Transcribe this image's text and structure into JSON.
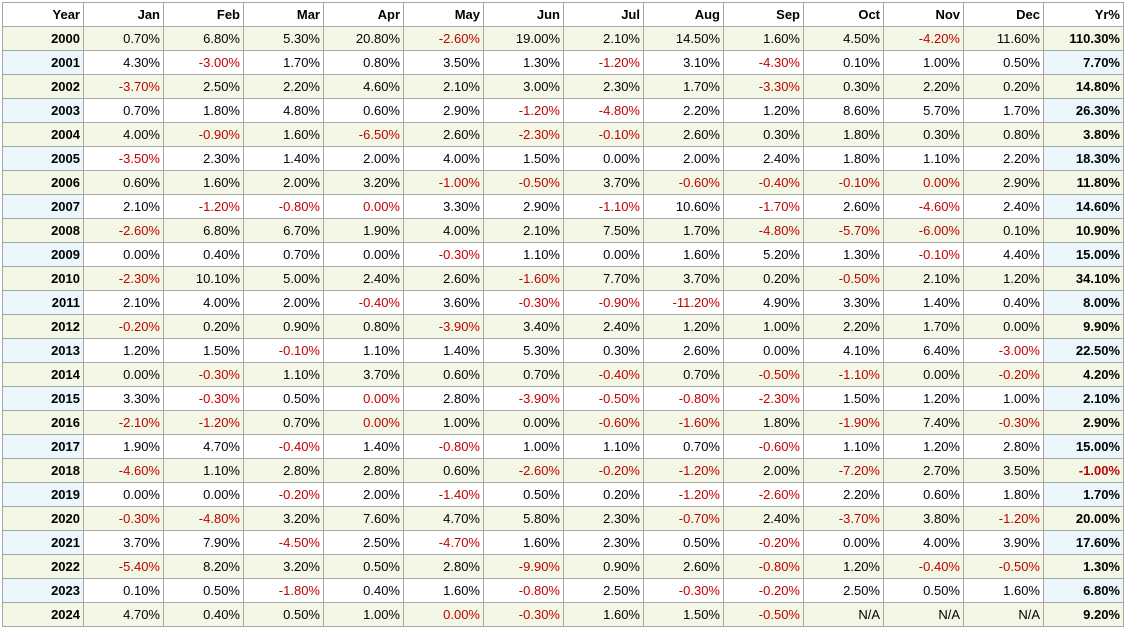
{
  "header": [
    "Year",
    "Jan",
    "Feb",
    "Mar",
    "Apr",
    "May",
    "Jun",
    "Jul",
    "Aug",
    "Sep",
    "Oct",
    "Nov",
    "Dec",
    "Yr%"
  ],
  "rows": [
    [
      "2000",
      "0.70%",
      "6.80%",
      "5.30%",
      "20.80%",
      "-2.60%",
      "19.00%",
      "2.10%",
      "14.50%",
      "1.60%",
      "4.50%",
      "-4.20%",
      "11.60%",
      "110.30%"
    ],
    [
      "2001",
      "4.30%",
      "-3.00%",
      "1.70%",
      "0.80%",
      "3.50%",
      "1.30%",
      "-1.20%",
      "3.10%",
      "-4.30%",
      "0.10%",
      "1.00%",
      "0.50%",
      "7.70%"
    ],
    [
      "2002",
      "-3.70%",
      "2.50%",
      "2.20%",
      "4.60%",
      "2.10%",
      "3.00%",
      "2.30%",
      "1.70%",
      "-3.30%",
      "0.30%",
      "2.20%",
      "0.20%",
      "14.80%"
    ],
    [
      "2003",
      "0.70%",
      "1.80%",
      "4.80%",
      "0.60%",
      "2.90%",
      "-1.20%",
      "-4.80%",
      "2.20%",
      "1.20%",
      "8.60%",
      "5.70%",
      "1.70%",
      "26.30%"
    ],
    [
      "2004",
      "4.00%",
      "-0.90%",
      "1.60%",
      "-6.50%",
      "2.60%",
      "-2.30%",
      "-0.10%",
      "2.60%",
      "0.30%",
      "1.80%",
      "0.30%",
      "0.80%",
      "3.80%"
    ],
    [
      "2005",
      "-3.50%",
      "2.30%",
      "1.40%",
      "2.00%",
      "4.00%",
      "1.50%",
      "0.00%",
      "2.00%",
      "2.40%",
      "1.80%",
      "1.10%",
      "2.20%",
      "18.30%"
    ],
    [
      "2006",
      "0.60%",
      "1.60%",
      "2.00%",
      "3.20%",
      "-1.00%",
      "-0.50%",
      "3.70%",
      "-0.60%",
      "-0.40%",
      "-0.10%",
      "0.00%",
      "2.90%",
      "11.80%"
    ],
    [
      "2007",
      "2.10%",
      "-1.20%",
      "-0.80%",
      "0.00%",
      "3.30%",
      "2.90%",
      "-1.10%",
      "10.60%",
      "-1.70%",
      "2.60%",
      "-4.60%",
      "2.40%",
      "14.60%"
    ],
    [
      "2008",
      "-2.60%",
      "6.80%",
      "6.70%",
      "1.90%",
      "4.00%",
      "2.10%",
      "7.50%",
      "1.70%",
      "-4.80%",
      "-5.70%",
      "-6.00%",
      "0.10%",
      "10.90%"
    ],
    [
      "2009",
      "0.00%",
      "0.40%",
      "0.70%",
      "0.00%",
      "-0.30%",
      "1.10%",
      "0.00%",
      "1.60%",
      "5.20%",
      "1.30%",
      "-0.10%",
      "4.40%",
      "15.00%"
    ],
    [
      "2010",
      "-2.30%",
      "10.10%",
      "5.00%",
      "2.40%",
      "2.60%",
      "-1.60%",
      "7.70%",
      "3.70%",
      "0.20%",
      "-0.50%",
      "2.10%",
      "1.20%",
      "34.10%"
    ],
    [
      "2011",
      "2.10%",
      "4.00%",
      "2.00%",
      "-0.40%",
      "3.60%",
      "-0.30%",
      "-0.90%",
      "-11.20%",
      "4.90%",
      "3.30%",
      "1.40%",
      "0.40%",
      "8.00%"
    ],
    [
      "2012",
      "-0.20%",
      "0.20%",
      "0.90%",
      "0.80%",
      "-3.90%",
      "3.40%",
      "2.40%",
      "1.20%",
      "1.00%",
      "2.20%",
      "1.70%",
      "0.00%",
      "9.90%"
    ],
    [
      "2013",
      "1.20%",
      "1.50%",
      "-0.10%",
      "1.10%",
      "1.40%",
      "5.30%",
      "0.30%",
      "2.60%",
      "0.00%",
      "4.10%",
      "6.40%",
      "-3.00%",
      "22.50%"
    ],
    [
      "2014",
      "0.00%",
      "-0.30%",
      "1.10%",
      "3.70%",
      "0.60%",
      "0.70%",
      "-0.40%",
      "0.70%",
      "-0.50%",
      "-1.10%",
      "0.00%",
      "-0.20%",
      "4.20%"
    ],
    [
      "2015",
      "3.30%",
      "-0.30%",
      "0.50%",
      "0.00%",
      "2.80%",
      "-3.90%",
      "-0.50%",
      "-0.80%",
      "-2.30%",
      "1.50%",
      "1.20%",
      "1.00%",
      "2.10%"
    ],
    [
      "2016",
      "-2.10%",
      "-1.20%",
      "0.70%",
      "0.00%",
      "1.00%",
      "0.00%",
      "-0.60%",
      "-1.60%",
      "1.80%",
      "-1.90%",
      "7.40%",
      "-0.30%",
      "2.90%"
    ],
    [
      "2017",
      "1.90%",
      "4.70%",
      "-0.40%",
      "1.40%",
      "-0.80%",
      "1.00%",
      "1.10%",
      "0.70%",
      "-0.60%",
      "1.10%",
      "1.20%",
      "2.80%",
      "15.00%"
    ],
    [
      "2018",
      "-4.60%",
      "1.10%",
      "2.80%",
      "2.80%",
      "0.60%",
      "-2.60%",
      "-0.20%",
      "-1.20%",
      "2.00%",
      "-7.20%",
      "2.70%",
      "3.50%",
      "-1.00%"
    ],
    [
      "2019",
      "0.00%",
      "0.00%",
      "-0.20%",
      "2.00%",
      "-1.40%",
      "0.50%",
      "0.20%",
      "-1.20%",
      "-2.60%",
      "2.20%",
      "0.60%",
      "1.80%",
      "1.70%"
    ],
    [
      "2020",
      "-0.30%",
      "-4.80%",
      "3.20%",
      "7.60%",
      "4.70%",
      "5.80%",
      "2.30%",
      "-0.70%",
      "2.40%",
      "-3.70%",
      "3.80%",
      "-1.20%",
      "20.00%"
    ],
    [
      "2021",
      "3.70%",
      "7.90%",
      "-4.50%",
      "2.50%",
      "-4.70%",
      "1.60%",
      "2.30%",
      "0.50%",
      "-0.20%",
      "0.00%",
      "4.00%",
      "3.90%",
      "17.60%"
    ],
    [
      "2022",
      "-5.40%",
      "8.20%",
      "3.20%",
      "0.50%",
      "2.80%",
      "-9.90%",
      "0.90%",
      "2.60%",
      "-0.80%",
      "1.20%",
      "-0.40%",
      "-0.50%",
      "1.30%"
    ],
    [
      "2023",
      "0.10%",
      "0.50%",
      "-1.80%",
      "0.40%",
      "1.60%",
      "-0.80%",
      "2.50%",
      "-0.30%",
      "-0.20%",
      "2.50%",
      "0.50%",
      "1.60%",
      "6.80%"
    ],
    [
      "2024",
      "4.70%",
      "0.40%",
      "0.50%",
      "1.00%",
      "0.00%",
      "-0.30%",
      "1.60%",
      "1.50%",
      "-0.50%",
      "N/A",
      "N/A",
      "N/A",
      "9.20%"
    ]
  ],
  "red_zero_cells": [
    [
      "2007",
      "Apr"
    ],
    [
      "2015",
      "Apr"
    ],
    [
      "2016",
      "Apr"
    ],
    [
      "2024",
      "May"
    ],
    [
      "2006",
      "Nov"
    ]
  ],
  "colors": {
    "negative": "#c00000",
    "odd_row_bg": "#f3f8e6",
    "even_year_bg": "#ebf7fc",
    "grid": "#a6a6a6"
  }
}
